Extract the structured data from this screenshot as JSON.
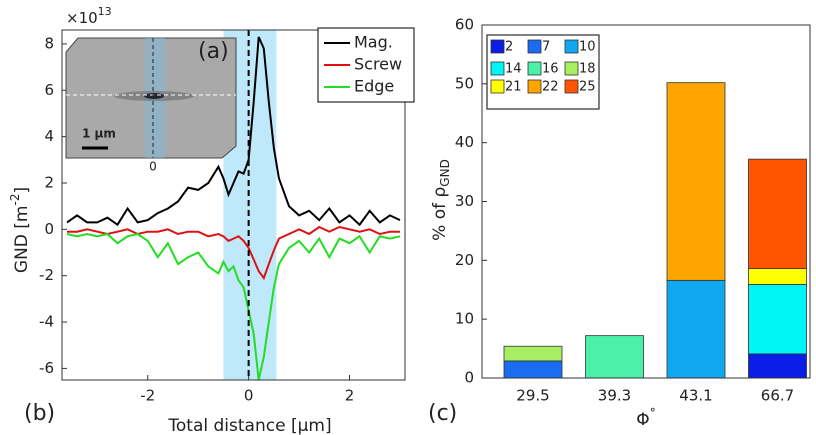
{
  "chart_data": [
    {
      "type": "line",
      "panel_label": "(b)",
      "inset_label": "(a)",
      "inset_scale": "1 µm",
      "inset_zero": "0",
      "exponent_label": "×10",
      "exponent_power": "13",
      "y_label": "GND  [m",
      "y_label_power": "-2",
      "y_label_end": "]",
      "x_label": "Total distance [µm]",
      "x": [
        -3.6,
        -3.4,
        -3.2,
        -3.0,
        -2.8,
        -2.6,
        -2.4,
        -2.2,
        -2.0,
        -1.8,
        -1.6,
        -1.4,
        -1.2,
        -1.0,
        -0.8,
        -0.6,
        -0.5,
        -0.4,
        -0.3,
        -0.2,
        -0.1,
        0,
        0.1,
        0.2,
        0.3,
        0.4,
        0.5,
        0.6,
        0.8,
        1.0,
        1.2,
        1.4,
        1.6,
        1.8,
        2.0,
        2.2,
        2.4,
        2.6,
        2.8,
        3.0
      ],
      "series": [
        {
          "name": "Mag.",
          "color": "#000000",
          "values": [
            0.3,
            0.6,
            0.3,
            0.3,
            0.5,
            0.2,
            0.9,
            0.3,
            0.4,
            0.7,
            0.9,
            1.2,
            1.8,
            1.7,
            2.0,
            2.7,
            2.2,
            1.5,
            2.0,
            2.5,
            2.4,
            3.0,
            5.5,
            8.3,
            7.8,
            5.5,
            3.5,
            2.2,
            1.0,
            0.6,
            0.8,
            0.4,
            0.9,
            0.3,
            0.6,
            0.2,
            0.8,
            0.3,
            0.6,
            0.4
          ]
        },
        {
          "name": "Screw",
          "color": "#e01010",
          "values": [
            -0.1,
            -0.1,
            0,
            -0.1,
            -0.2,
            -0.1,
            0,
            -0.2,
            -0.1,
            -0.1,
            0,
            -0.2,
            -0.1,
            -0.1,
            -0.3,
            -0.2,
            -0.3,
            -0.5,
            -0.4,
            -0.3,
            -0.5,
            -0.8,
            -1.3,
            -1.8,
            -2.1,
            -1.5,
            -0.9,
            -0.4,
            -0.2,
            0,
            -0.2,
            0.1,
            -0.1,
            0.1,
            0,
            -0.1,
            0,
            -0.2,
            -0.1,
            -0.1
          ]
        },
        {
          "name": "Edge",
          "color": "#22dd22",
          "values": [
            -0.2,
            -0.3,
            -0.2,
            -0.3,
            -0.2,
            -0.6,
            -0.3,
            -0.2,
            -0.5,
            -1.2,
            -0.6,
            -1.5,
            -1.2,
            -1.0,
            -1.6,
            -1.9,
            -1.4,
            -1.8,
            -1.6,
            -2.2,
            -2.5,
            -3.5,
            -4.5,
            -6.5,
            -5.5,
            -4.0,
            -2.5,
            -1.5,
            -0.8,
            -0.5,
            -1.0,
            -0.4,
            -1.2,
            -0.4,
            -0.6,
            -0.3,
            -1.0,
            -0.3,
            -0.4,
            -0.3
          ]
        }
      ],
      "highlight": [
        -0.5,
        0.55
      ],
      "highlight_color": "#bfe9fa",
      "vline": 0,
      "xlim": [
        -3.7,
        3.1
      ],
      "ylim": [
        -6.5,
        8.6
      ],
      "xticks": [
        -2,
        0,
        2
      ],
      "yticks": [
        -6,
        -4,
        -2,
        0,
        2,
        4,
        6,
        8
      ],
      "legend": "upper right"
    },
    {
      "type": "stacked_bar",
      "panel_label": "(c)",
      "y_label": "% of ρ",
      "y_label_sub": "GND",
      "x_label": "Φ",
      "x_label_sup": "°",
      "categories": [
        "29.5",
        "39.3",
        "43.1",
        "66.7"
      ],
      "series": [
        {
          "name": "2",
          "color": "#0a1ee8",
          "values": [
            null,
            null,
            null,
            4.1
          ]
        },
        {
          "name": "7",
          "color": "#1a6cf0",
          "values": [
            2.9,
            null,
            null,
            null
          ]
        },
        {
          "name": "10",
          "color": "#10a8f0",
          "values": [
            null,
            null,
            16.6,
            null
          ]
        },
        {
          "name": "14",
          "color": "#00f5f5",
          "values": [
            null,
            null,
            null,
            11.8
          ]
        },
        {
          "name": "16",
          "color": "#4cf0a8",
          "values": [
            null,
            7.2,
            null,
            null
          ]
        },
        {
          "name": "18",
          "color": "#a8ee62",
          "values": [
            2.5,
            null,
            null,
            null
          ]
        },
        {
          "name": "21",
          "color": "#ffff00",
          "values": [
            null,
            null,
            null,
            2.7
          ]
        },
        {
          "name": "22",
          "color": "#ffa500",
          "values": [
            null,
            null,
            33.6,
            null
          ]
        },
        {
          "name": "25",
          "color": "#ff5500",
          "values": [
            null,
            null,
            null,
            18.6
          ]
        }
      ],
      "ylim": [
        0,
        60
      ],
      "yticks": [
        0,
        10,
        20,
        30,
        40,
        50,
        60
      ],
      "legend": "upper left"
    }
  ]
}
